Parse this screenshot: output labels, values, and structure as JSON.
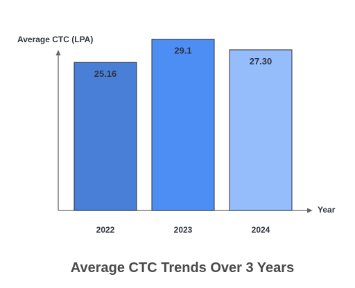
{
  "chart_data": {
    "type": "bar",
    "title": "Average CTC Trends Over 3 Years",
    "ylabel": "Average CTC (LPA)",
    "xlabel": "Year",
    "categories": [
      "2022",
      "2023",
      "2024"
    ],
    "values": [
      25.16,
      29.1,
      27.3
    ],
    "value_labels": [
      "25.16",
      "29.1",
      "27.30"
    ],
    "colors": [
      "#4a7fd8",
      "#4d8ef5",
      "#95bdfc"
    ],
    "ylim": [
      0,
      30
    ],
    "grid": false,
    "legend": "none"
  }
}
